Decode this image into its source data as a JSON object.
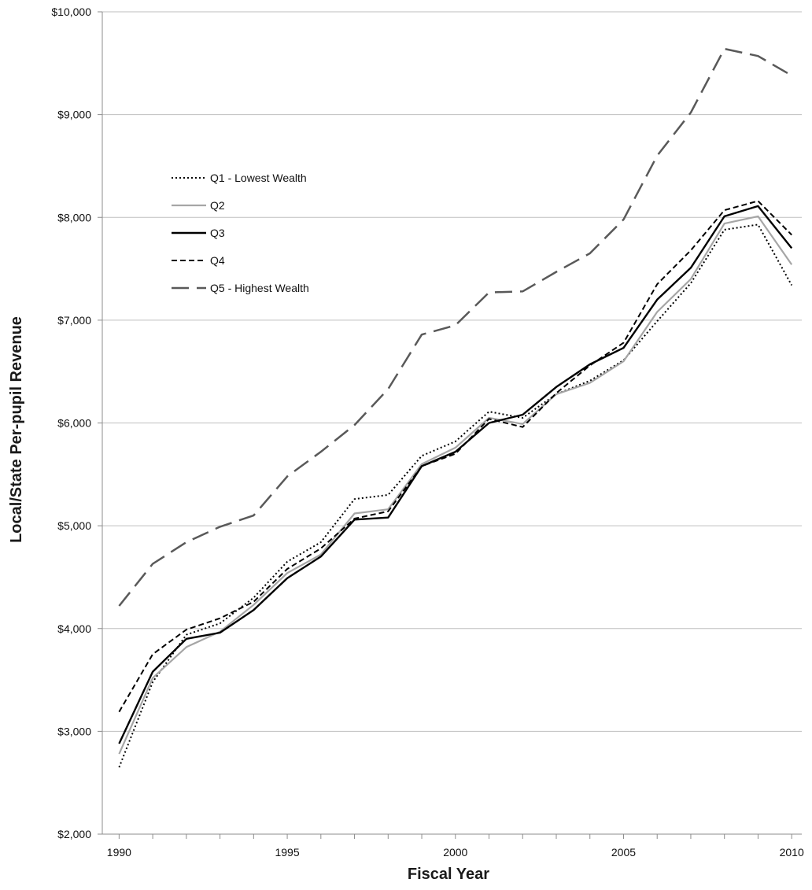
{
  "chart_data": {
    "type": "line",
    "title": "",
    "xlabel": "Fiscal Year",
    "ylabel": "Local/State Per-pupil Revenue",
    "x": [
      1990,
      1991,
      1992,
      1993,
      1994,
      1995,
      1996,
      1997,
      1998,
      1999,
      2000,
      2001,
      2002,
      2003,
      2004,
      2005,
      2006,
      2007,
      2008,
      2009,
      2010
    ],
    "xlim": [
      1989.5,
      2010.3
    ],
    "xticks": [
      1990,
      1995,
      2000,
      2005,
      2010
    ],
    "xtick_labels": [
      "1990",
      "1995",
      "2000",
      "2005",
      "2010"
    ],
    "ylim": [
      2000,
      10000
    ],
    "yticks": [
      2000,
      3000,
      4000,
      5000,
      6000,
      7000,
      8000,
      9000,
      10000
    ],
    "ytick_labels": [
      "$2,000",
      "$3,000",
      "$4,000",
      "$5,000",
      "$6,000",
      "$7,000",
      "$8,000",
      "$9,000",
      "$10,000"
    ],
    "grid": "horizontal",
    "legend_position": "upper-left",
    "series": [
      {
        "name": "Q1 - Lowest Wealth",
        "style": "dotted",
        "color": "#000000",
        "values": [
          2650,
          3480,
          3940,
          4050,
          4300,
          4650,
          4840,
          5260,
          5300,
          5680,
          5820,
          6110,
          6050,
          6280,
          6410,
          6610,
          6990,
          7360,
          7880,
          7930,
          7340
        ]
      },
      {
        "name": "Q2",
        "style": "solid",
        "color": "#a6a6a6",
        "values": [
          2780,
          3520,
          3820,
          3970,
          4230,
          4540,
          4720,
          5120,
          5160,
          5600,
          5760,
          6050,
          5990,
          6280,
          6390,
          6600,
          7080,
          7400,
          7940,
          8010,
          7540
        ]
      },
      {
        "name": "Q3",
        "style": "solid",
        "color": "#000000",
        "values": [
          2880,
          3580,
          3900,
          3960,
          4180,
          4490,
          4700,
          5060,
          5080,
          5580,
          5720,
          6000,
          6080,
          6350,
          6570,
          6730,
          7200,
          7510,
          8010,
          8110,
          7700
        ]
      },
      {
        "name": "Q4",
        "style": "dashed",
        "color": "#000000",
        "values": [
          3190,
          3750,
          3990,
          4100,
          4260,
          4580,
          4780,
          5070,
          5140,
          5580,
          5700,
          6040,
          5960,
          6290,
          6560,
          6780,
          7350,
          7680,
          8070,
          8160,
          7830
        ]
      },
      {
        "name": "Q5 - Highest Wealth",
        "style": "longdash",
        "color": "#595959",
        "values": [
          4220,
          4630,
          4840,
          4990,
          5100,
          5480,
          5720,
          5980,
          6330,
          6860,
          6950,
          7270,
          7280,
          7470,
          7650,
          7980,
          8600,
          9020,
          9640,
          9570,
          9380
        ]
      }
    ]
  }
}
